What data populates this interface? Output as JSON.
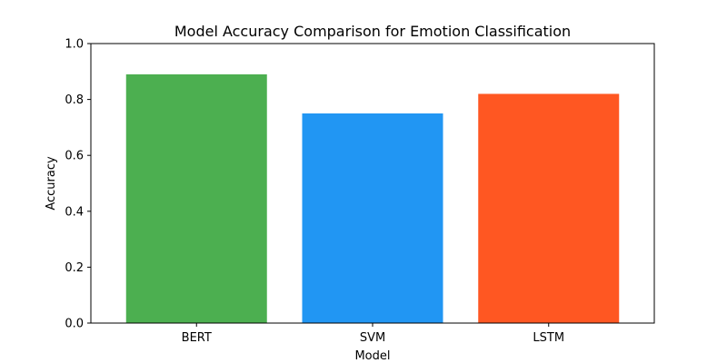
{
  "chart_data": {
    "type": "bar",
    "title": "Model Accuracy Comparison for Emotion Classification",
    "xlabel": "Model",
    "ylabel": "Accuracy",
    "categories": [
      "BERT",
      "SVM",
      "LSTM"
    ],
    "values": [
      0.89,
      0.75,
      0.82
    ],
    "colors": [
      "#4caf50",
      "#2196f3",
      "#ff5722"
    ],
    "ylim": [
      0,
      1.0
    ],
    "yticks": [
      "0.0",
      "0.2",
      "0.4",
      "0.6",
      "0.8",
      "1.0"
    ],
    "grid": false,
    "legend": "none"
  }
}
